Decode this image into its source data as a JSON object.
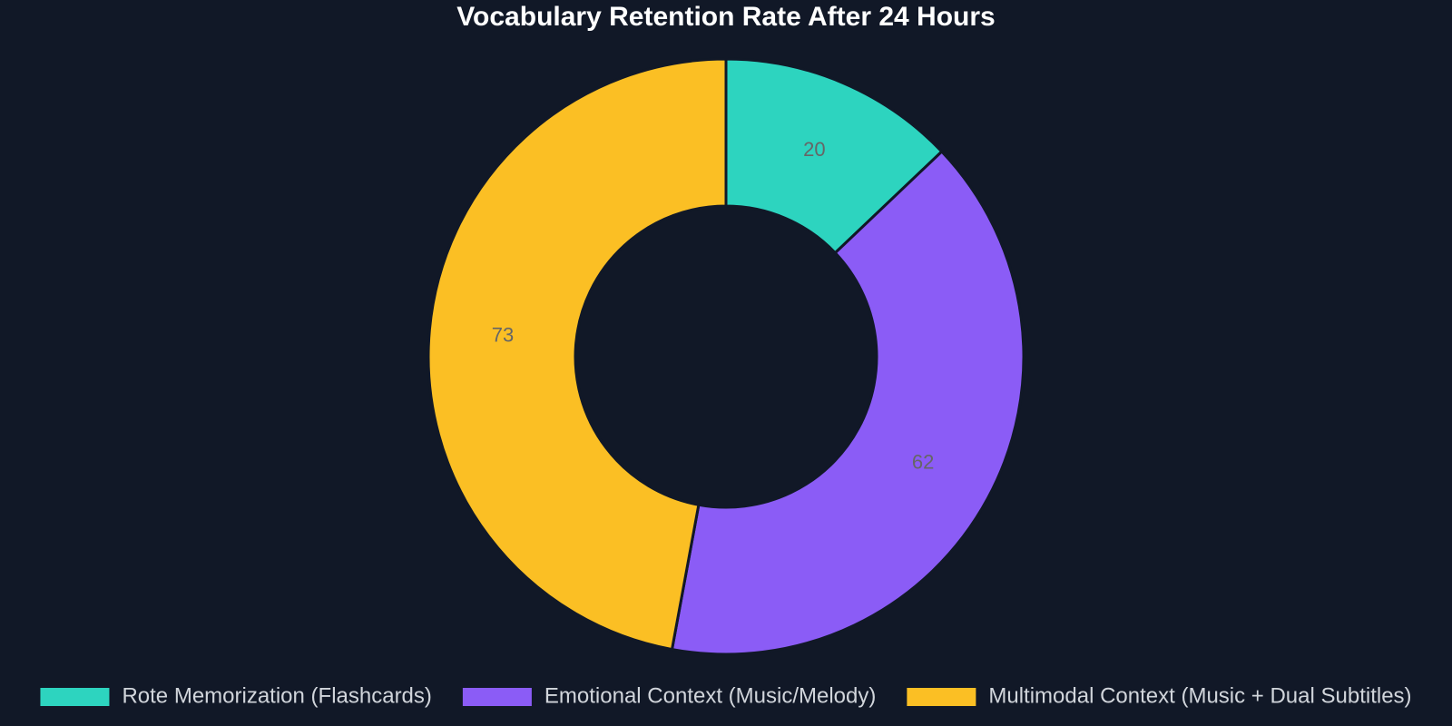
{
  "chart_data": {
    "type": "doughnut",
    "title": "Vocabulary Retention Rate After 24 Hours",
    "categories": [
      "Rote Memorization (Flashcards)",
      "Emotional Context (Music/Melody)",
      "Multimodal Context (Music + Dual Subtitles)"
    ],
    "values": [
      20,
      62,
      73
    ],
    "colors": [
      "#2dd4bf",
      "#8b5cf6",
      "#fbbf24"
    ],
    "legend": "bottom"
  }
}
